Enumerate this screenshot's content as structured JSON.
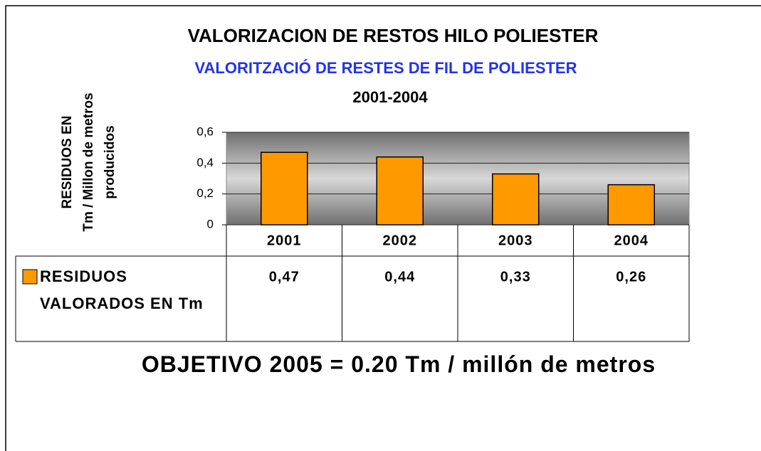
{
  "chart_data": {
    "type": "bar",
    "title": "VALORIZACION DE RESTOS HILO POLIESTER",
    "subtitle": "VALORITZACIÓ DE RESTES DE FIL DE POLIESTER",
    "period": "2001-2004",
    "y_label_lines": [
      "RESIDUOS EN",
      "Tm / Millon de metros",
      "producidos"
    ],
    "categories": [
      "2001",
      "2002",
      "2003",
      "2004"
    ],
    "series": [
      {
        "name": "RESIDUOS VALORADOS EN Tm",
        "color": "#ff9900",
        "values": [
          0.47,
          0.44,
          0.33,
          0.26
        ],
        "value_labels": [
          "0,47",
          "0,44",
          "0,33",
          "0,26"
        ]
      }
    ],
    "ylim": [
      0,
      0.6
    ],
    "yticks": [
      0,
      {
        "value": 0.2,
        "label": "0,2"
      },
      {
        "value": 0.4,
        "label": "0,4"
      },
      {
        "value": 0.6,
        "label": "0,6"
      }
    ],
    "grid": true,
    "annotation": "OBJETIVO 2005 = 0.20 Tm / millón de metros"
  }
}
